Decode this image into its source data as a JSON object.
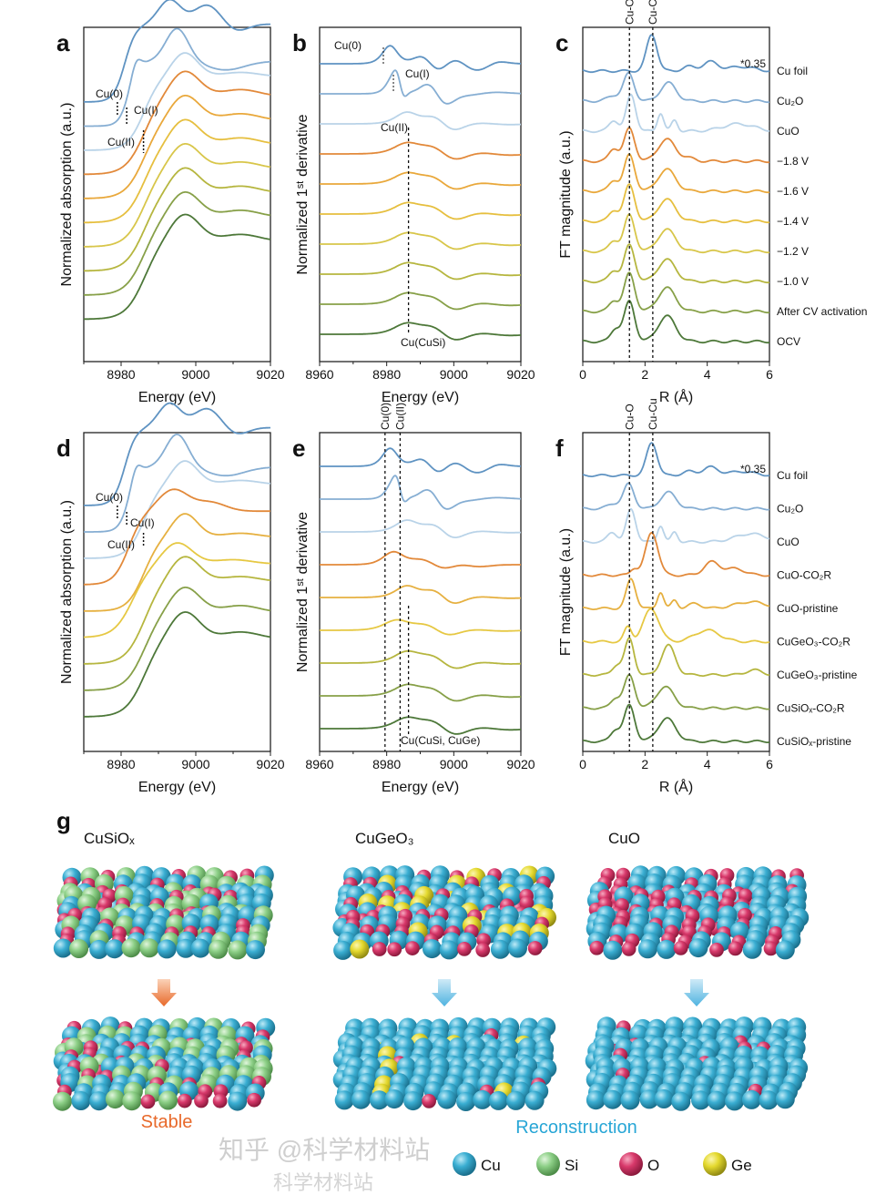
{
  "colors": {
    "series": [
      "#5f93c2",
      "#86aed3",
      "#b9d3e8",
      "#e2893a",
      "#e9a83b",
      "#e6bf3f",
      "#d8c64a",
      "#b6b63f",
      "#87a048",
      "#4d7839"
    ],
    "series_f": [
      "#5f93c2",
      "#86aed3",
      "#b9d3e8",
      "#e2893a",
      "#e6b040",
      "#e6c843",
      "#b6b63f",
      "#87a048",
      "#4d7839"
    ],
    "cu": "#3aaed2",
    "si": "#8ccf86",
    "o": "#d8396b",
    "ge": "#e4d92e",
    "stable": "#e8692a",
    "reconstruction": "#28a6d6"
  },
  "chart_data": [
    {
      "id": "a",
      "type": "line",
      "letter": "a",
      "xlabel": "Energy (eV)",
      "ylabel": "Normalized absorption (a.u.)",
      "xlim": [
        8970,
        9020
      ],
      "xticks": [
        8980,
        9000,
        9020
      ],
      "series": [
        {
          "name": "Cu foil",
          "edge": [
            8981,
            0.9,
            1.5
          ],
          "peaks": [
            [
              8993,
              0.28,
              3
            ],
            [
              9003,
              0.22,
              3.5
            ],
            [
              9011,
              -0.08,
              3
            ]
          ]
        },
        {
          "name": "Cu2O",
          "edge": [
            8982,
            0.75,
            1.3
          ],
          "peaks": [
            [
              8984,
              0.12,
              1.2
            ],
            [
              8995,
              0.38,
              3
            ],
            [
              9008,
              -0.1,
              5
            ]
          ]
        },
        {
          "name": "CuO",
          "edge": [
            8986,
            0.85,
            2.2
          ],
          "peaks": [
            [
              8997,
              0.28,
              3.5
            ],
            [
              9012,
              0.05,
              5
            ]
          ]
        },
        {
          "name": "-1.8 V",
          "edge": [
            8986,
            0.9,
            2.5
          ],
          "peaks": [
            [
              8997,
              0.3,
              4
            ],
            [
              9012,
              0.08,
              5
            ]
          ]
        },
        {
          "name": "-1.6 V",
          "edge": [
            8986,
            0.9,
            2.5
          ],
          "peaks": [
            [
              8997,
              0.3,
              4
            ],
            [
              9012,
              0.08,
              5
            ]
          ]
        },
        {
          "name": "-1.4 V",
          "edge": [
            8986,
            0.9,
            2.5
          ],
          "peaks": [
            [
              8997,
              0.3,
              4
            ],
            [
              9012,
              0.08,
              5
            ]
          ]
        },
        {
          "name": "-1.2 V",
          "edge": [
            8986,
            0.9,
            2.5
          ],
          "peaks": [
            [
              8997,
              0.3,
              4
            ],
            [
              9012,
              0.08,
              5
            ]
          ]
        },
        {
          "name": "-1.0 V",
          "edge": [
            8986,
            0.9,
            2.5
          ],
          "peaks": [
            [
              8997,
              0.3,
              4
            ],
            [
              9012,
              0.08,
              5
            ]
          ]
        },
        {
          "name": "After CV activation",
          "edge": [
            8986,
            0.9,
            2.5
          ],
          "peaks": [
            [
              8997,
              0.3,
              4
            ],
            [
              9012,
              0.08,
              5
            ]
          ]
        },
        {
          "name": "OCV",
          "edge": [
            8986,
            0.9,
            2.5
          ],
          "peaks": [
            [
              8997,
              0.32,
              4
            ],
            [
              9012,
              0.08,
              5
            ]
          ]
        }
      ],
      "annotations": [
        {
          "text": "Cu(0)",
          "x": 8979
        },
        {
          "text": "Cu(I)",
          "x": 8981.5
        },
        {
          "text": "Cu(II)",
          "x": 8986
        }
      ]
    },
    {
      "id": "b",
      "type": "line",
      "letter": "b",
      "xlabel": "Energy (eV)",
      "ylabel": "Normalized 1ˢᵗ derivative",
      "xlim": [
        8960,
        9020
      ],
      "xticks": [
        8960,
        8980,
        9000,
        9020
      ],
      "derivative_of": "a",
      "annotations": [
        {
          "text": "Cu(0)",
          "x": 8979
        },
        {
          "text": "Cu(I)",
          "x": 8982
        },
        {
          "text": "Cu(II)",
          "x": 8984
        },
        {
          "text": "Cu(CuSi)",
          "x": 8986.5
        }
      ]
    },
    {
      "id": "c",
      "type": "line",
      "letter": "c",
      "xlabel": "R (Å)",
      "ylabel": "FT magnitude (a.u.)",
      "xlim": [
        0,
        6
      ],
      "xticks": [
        0,
        2,
        4,
        6
      ],
      "ref_lines": [
        {
          "text": "Cu-O",
          "x": 1.5
        },
        {
          "text": "Cu-Cu",
          "x": 2.25
        }
      ],
      "scale_note": "*0.35",
      "series": [
        {
          "name": "Cu foil",
          "peaks": [
            [
              2.22,
              1.0,
              0.17
            ],
            [
              3.4,
              0.12,
              0.2
            ],
            [
              4.1,
              0.25,
              0.25
            ],
            [
              5.1,
              0.12,
              0.4
            ]
          ]
        },
        {
          "name": "Cu₂O",
          "peaks": [
            [
              1.48,
              0.75,
              0.17
            ],
            [
              2.75,
              0.5,
              0.25
            ],
            [
              1.0,
              0.15,
              0.2
            ]
          ]
        },
        {
          "name": "CuO",
          "peaks": [
            [
              1.55,
              1.0,
              0.15
            ],
            [
              1.0,
              0.3,
              0.15
            ],
            [
              2.5,
              0.5,
              0.1
            ],
            [
              2.95,
              0.3,
              0.1
            ],
            [
              5.0,
              0.2,
              0.5
            ]
          ]
        },
        {
          "name": "−1.8 V",
          "peaks": [
            [
              1.5,
              0.9,
              0.17
            ],
            [
              1.0,
              0.35,
              0.15
            ],
            [
              2.7,
              0.6,
              0.28
            ],
            [
              3.4,
              0.08,
              0.2
            ]
          ]
        },
        {
          "name": "−1.6 V",
          "peaks": [
            [
              1.5,
              1.0,
              0.17
            ],
            [
              1.0,
              0.3,
              0.15
            ],
            [
              2.7,
              0.6,
              0.28
            ]
          ]
        },
        {
          "name": "−1.4 V",
          "peaks": [
            [
              1.5,
              1.0,
              0.17
            ],
            [
              1.0,
              0.3,
              0.15
            ],
            [
              2.7,
              0.6,
              0.28
            ]
          ]
        },
        {
          "name": "−1.2 V",
          "peaks": [
            [
              1.5,
              1.0,
              0.17
            ],
            [
              1.0,
              0.3,
              0.15
            ],
            [
              2.7,
              0.6,
              0.28
            ]
          ]
        },
        {
          "name": "−1.0 V",
          "peaks": [
            [
              1.5,
              1.0,
              0.17
            ],
            [
              1.0,
              0.3,
              0.15
            ],
            [
              2.7,
              0.6,
              0.28
            ]
          ]
        },
        {
          "name": "After CV activation",
          "peaks": [
            [
              1.5,
              1.05,
              0.17
            ],
            [
              1.0,
              0.3,
              0.15
            ],
            [
              2.7,
              0.65,
              0.28
            ]
          ]
        },
        {
          "name": "OCV",
          "peaks": [
            [
              1.5,
              1.1,
              0.17
            ],
            [
              1.05,
              0.35,
              0.15
            ],
            [
              2.7,
              0.7,
              0.28
            ]
          ]
        }
      ]
    },
    {
      "id": "d",
      "type": "line",
      "letter": "d",
      "xlabel": "Energy (eV)",
      "ylabel": "Normalized absorption (a.u.)",
      "xlim": [
        8970,
        9020
      ],
      "xticks": [
        8980,
        9000,
        9020
      ],
      "series": [
        {
          "name": "Cu foil",
          "edge": [
            8981,
            0.9,
            1.5
          ],
          "peaks": [
            [
              8993,
              0.28,
              3
            ],
            [
              9003,
              0.22,
              3.5
            ],
            [
              9011,
              -0.08,
              3
            ]
          ]
        },
        {
          "name": "Cu2O",
          "edge": [
            8982,
            0.75,
            1.3
          ],
          "peaks": [
            [
              8984,
              0.12,
              1.2
            ],
            [
              8995,
              0.38,
              3
            ],
            [
              9008,
              -0.1,
              5
            ]
          ]
        },
        {
          "name": "CuO",
          "edge": [
            8986,
            0.85,
            2.2
          ],
          "peaks": [
            [
              8997,
              0.28,
              3.5
            ],
            [
              9012,
              0.05,
              5
            ]
          ]
        },
        {
          "name": "CuO-CO2R",
          "edge": [
            8982,
            0.85,
            2
          ],
          "peaks": [
            [
              8994,
              0.25,
              4
            ],
            [
              9004,
              0.1,
              4
            ]
          ]
        },
        {
          "name": "CuO-pristine",
          "edge": [
            8986,
            0.85,
            2.2
          ],
          "peaks": [
            [
              8997,
              0.28,
              3.5
            ],
            [
              9012,
              0.05,
              5
            ]
          ]
        },
        {
          "name": "CuGeO3-CO2R",
          "edge": [
            8983,
            0.85,
            2.5
          ],
          "peaks": [
            [
              8995,
              0.25,
              4
            ],
            [
              9010,
              0.05,
              5
            ]
          ]
        },
        {
          "name": "CuGeO3-pristine",
          "edge": [
            8986,
            0.95,
            2.5
          ],
          "peaks": [
            [
              8997,
              0.3,
              4
            ],
            [
              9012,
              0.06,
              5
            ]
          ]
        },
        {
          "name": "CuSiOx-CO2R",
          "edge": [
            8986,
            0.9,
            2.5
          ],
          "peaks": [
            [
              8997,
              0.3,
              4
            ],
            [
              9012,
              0.08,
              5
            ]
          ]
        },
        {
          "name": "CuSiOx-pristine",
          "edge": [
            8986,
            0.9,
            2.5
          ],
          "peaks": [
            [
              8997,
              0.32,
              4
            ],
            [
              9012,
              0.08,
              5
            ]
          ]
        }
      ],
      "annotations": [
        {
          "text": "Cu(0)",
          "x": 8979
        },
        {
          "text": "Cu(I)",
          "x": 8981.5
        },
        {
          "text": "Cu(II)",
          "x": 8986
        }
      ]
    },
    {
      "id": "e",
      "type": "line",
      "letter": "e",
      "xlabel": "Energy (eV)",
      "ylabel": "Normalized 1ˢᵗ derivative",
      "xlim": [
        8960,
        9020
      ],
      "xticks": [
        8960,
        8980,
        9000,
        9020
      ],
      "derivative_of": "d",
      "ref_lines": [
        {
          "text": "Cu(0)",
          "x": 8979.5
        },
        {
          "text": "Cu(II)",
          "x": 8984
        }
      ],
      "annotations": [
        {
          "text": "Cu(CuSi, CuGe)",
          "x": 8986.5
        }
      ]
    },
    {
      "id": "f",
      "type": "line",
      "letter": "f",
      "xlabel": "R (Å)",
      "ylabel": "FT magnitude (a.u.)",
      "xlim": [
        0,
        6
      ],
      "xticks": [
        0,
        2,
        4,
        6
      ],
      "ref_lines": [
        {
          "text": "Cu-O",
          "x": 1.5
        },
        {
          "text": "Cu-Cu",
          "x": 2.25
        }
      ],
      "scale_note": "*0.35",
      "series": [
        {
          "name": "Cu foil",
          "peaks": [
            [
              2.22,
              1.0,
              0.17
            ],
            [
              3.4,
              0.12,
              0.2
            ],
            [
              4.1,
              0.25,
              0.25
            ],
            [
              5.1,
              0.12,
              0.4
            ]
          ]
        },
        {
          "name": "Cu₂O",
          "peaks": [
            [
              1.48,
              0.75,
              0.17
            ],
            [
              2.75,
              0.5,
              0.25
            ],
            [
              1.0,
              0.15,
              0.2
            ]
          ]
        },
        {
          "name": "CuO",
          "peaks": [
            [
              1.55,
              1.0,
              0.15
            ],
            [
              0.95,
              0.3,
              0.15
            ],
            [
              2.5,
              0.5,
              0.1
            ],
            [
              2.95,
              0.3,
              0.1
            ],
            [
              5.4,
              0.25,
              0.5
            ]
          ]
        },
        {
          "name": "CuO-CO₂R",
          "peaks": [
            [
              2.22,
              1.3,
              0.2
            ],
            [
              1.65,
              0.2,
              0.12
            ],
            [
              4.15,
              0.4,
              0.25
            ],
            [
              4.9,
              0.2,
              0.3
            ]
          ]
        },
        {
          "name": "CuO-pristine",
          "peaks": [
            [
              1.55,
              0.9,
              0.15
            ],
            [
              2.5,
              0.5,
              0.1
            ],
            [
              2.95,
              0.25,
              0.1
            ],
            [
              5.4,
              0.2,
              0.5
            ],
            [
              3.6,
              0.15,
              0.2
            ]
          ]
        },
        {
          "name": "CuGeO₃-CO₂R",
          "peaks": [
            [
              2.2,
              1.0,
              0.25
            ],
            [
              1.45,
              0.45,
              0.12
            ],
            [
              4.0,
              0.35,
              0.4
            ]
          ]
        },
        {
          "name": "CuGeO₃-pristine",
          "peaks": [
            [
              1.5,
              1.1,
              0.15
            ],
            [
              2.75,
              0.9,
              0.22
            ],
            [
              5.5,
              0.15,
              0.25
            ],
            [
              1.1,
              0.3,
              0.15
            ]
          ]
        },
        {
          "name": "CuSiOₓ-CO₂R",
          "peaks": [
            [
              1.5,
              1.0,
              0.17
            ],
            [
              1.05,
              0.3,
              0.15
            ],
            [
              2.65,
              0.65,
              0.28
            ]
          ]
        },
        {
          "name": "CuSiOₓ-pristine",
          "peaks": [
            [
              1.5,
              1.1,
              0.17
            ],
            [
              1.05,
              0.35,
              0.15
            ],
            [
              2.7,
              0.7,
              0.28
            ]
          ]
        }
      ]
    }
  ],
  "panel_g": {
    "letter": "g",
    "models": [
      {
        "title": "CuSiOₓ",
        "before_mix": {
          "cu": 0.45,
          "si": 0.3,
          "o": 0.25
        },
        "after_mix": {
          "cu": 0.45,
          "si": 0.3,
          "o": 0.25
        },
        "arrow": "stable"
      },
      {
        "title": "CuGeO₃",
        "before_mix": {
          "cu": 0.5,
          "o": 0.35,
          "ge": 0.15
        },
        "after_mix": {
          "cu": 0.9,
          "o": 0.04,
          "ge": 0.06
        },
        "arrow": "reconstruction"
      },
      {
        "title": "CuO",
        "before_mix": {
          "cu": 0.6,
          "o": 0.4
        },
        "after_mix": {
          "cu": 0.95,
          "o": 0.05
        },
        "arrow": "reconstruction"
      }
    ],
    "stable_label": "Stable",
    "reconstruction_label": "Reconstruction",
    "legend": [
      {
        "key": "cu",
        "label": "Cu"
      },
      {
        "key": "si",
        "label": "Si"
      },
      {
        "key": "o",
        "label": "O"
      },
      {
        "key": "ge",
        "label": "Ge"
      }
    ]
  },
  "watermark": {
    "line1": "知乎 @科学材料站",
    "line2": "科学材料站"
  }
}
